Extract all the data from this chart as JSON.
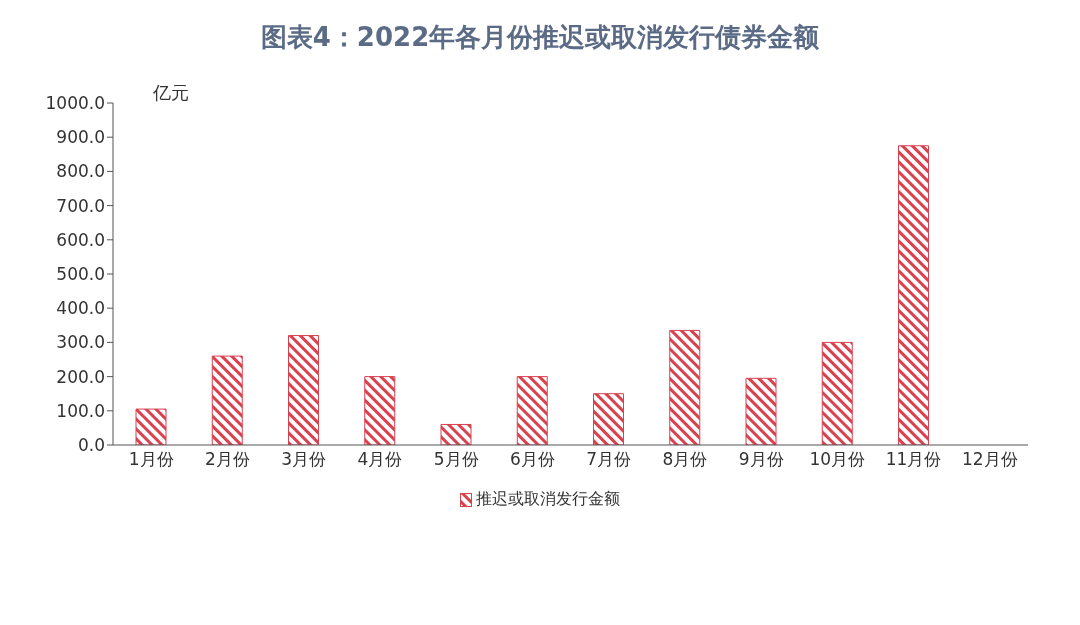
{
  "chart_data": {
    "type": "bar",
    "title": "图表4：2022年各月份推迟或取消发行债券金额",
    "ylabel": "亿元",
    "categories": [
      "1月份",
      "2月份",
      "3月份",
      "4月份",
      "5月份",
      "6月份",
      "7月份",
      "8月份",
      "9月份",
      "10月份",
      "11月份",
      "12月份"
    ],
    "series": [
      {
        "name": "推迟或取消发行金额",
        "color": "#d9414f",
        "values": [
          105,
          260,
          320,
          200,
          60,
          200,
          150,
          335,
          195,
          300,
          875,
          null
        ]
      }
    ],
    "ylim": [
      0,
      1000
    ],
    "yticks": [
      {
        "value": 0,
        "label": "0.0"
      },
      {
        "value": 100,
        "label": "100.0"
      },
      {
        "value": 200,
        "label": "200.0"
      },
      {
        "value": 300,
        "label": "300.0"
      },
      {
        "value": 400,
        "label": "400.0"
      },
      {
        "value": 500,
        "label": "500.0"
      },
      {
        "value": 600,
        "label": "600.0"
      },
      {
        "value": 700,
        "label": "700.0"
      },
      {
        "value": 800,
        "label": "800.0"
      },
      {
        "value": 900,
        "label": "900.0"
      },
      {
        "value": 1000,
        "label": "1000.0"
      }
    ],
    "grid": false,
    "legend": "bottom"
  }
}
